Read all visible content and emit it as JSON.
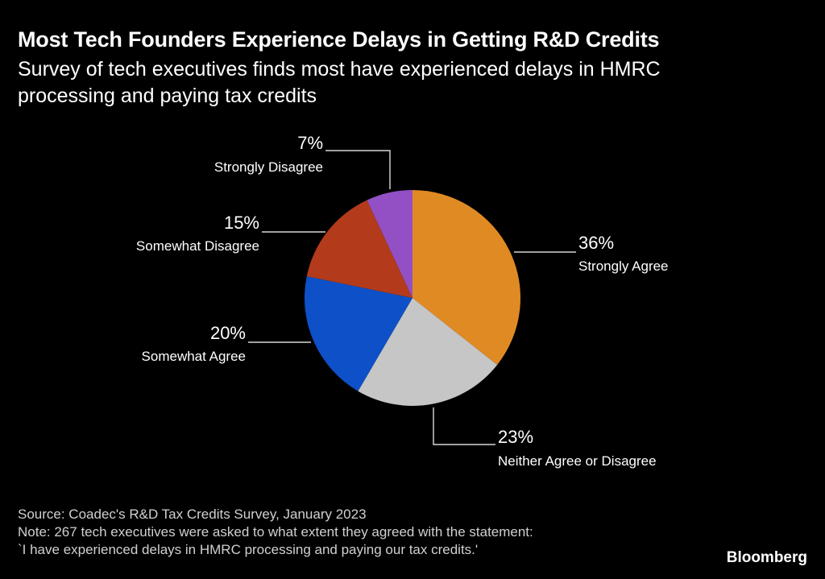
{
  "header": {
    "title": "Most Tech Founders Experience Delays in Getting R&D Credits",
    "subtitle": "Survey of tech executives finds most have experienced delays in HMRC processing and paying tax credits"
  },
  "chart_data": {
    "type": "pie",
    "unit": "%",
    "slices": [
      {
        "label": "Strongly Agree",
        "value": 36,
        "value_label": "36%",
        "color": "#e08a24"
      },
      {
        "label": "Neither Agree or Disagree",
        "value": 23,
        "value_label": "23%",
        "color": "#c6c6c6"
      },
      {
        "label": "Somewhat Agree",
        "value": 20,
        "value_label": "20%",
        "color": "#0e50c8"
      },
      {
        "label": "Somewhat Disagree",
        "value": 15,
        "value_label": "15%",
        "color": "#b33b1b"
      },
      {
        "label": "Strongly Disagree",
        "value": 7,
        "value_label": "7%",
        "color": "#9350c4"
      }
    ]
  },
  "footer": {
    "source": "Source: Coadec's R&D Tax Credits Survey, January 2023",
    "note_line1": "Note: 267 tech executives were asked to what extent they agreed with the statement:",
    "note_line2": "`I have experienced delays in HMRC processing and paying our tax credits.'"
  },
  "brand": {
    "name": "Bloomberg"
  }
}
